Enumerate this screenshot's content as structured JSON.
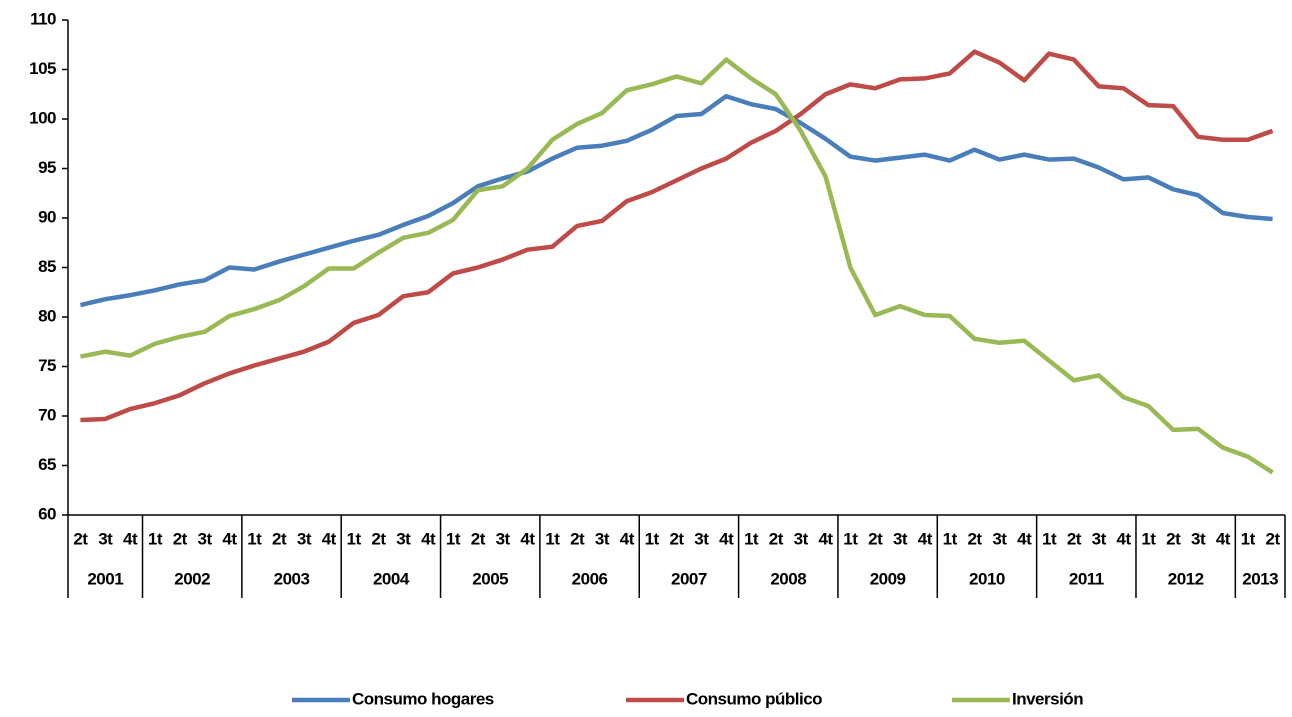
{
  "chart_data": {
    "type": "line",
    "categories": [
      "2t",
      "3t",
      "4t",
      "1t",
      "2t",
      "3t",
      "4t",
      "1t",
      "2t",
      "3t",
      "4t",
      "1t",
      "2t",
      "3t",
      "4t",
      "1t",
      "2t",
      "3t",
      "4t",
      "1t",
      "2t",
      "3t",
      "4t",
      "1t",
      "2t",
      "3t",
      "4t",
      "1t",
      "2t",
      "3t",
      "4t",
      "1t",
      "2t",
      "3t",
      "4t",
      "1t",
      "2t",
      "3t",
      "4t",
      "1t",
      "2t",
      "3t",
      "4t",
      "1t",
      "2t",
      "3t",
      "4t",
      "1t",
      "2t"
    ],
    "category_groups": [
      {
        "label": "2001",
        "size": 3
      },
      {
        "label": "2002",
        "size": 4
      },
      {
        "label": "2003",
        "size": 4
      },
      {
        "label": "2004",
        "size": 4
      },
      {
        "label": "2005",
        "size": 4
      },
      {
        "label": "2006",
        "size": 4
      },
      {
        "label": "2007",
        "size": 4
      },
      {
        "label": "2008",
        "size": 4
      },
      {
        "label": "2009",
        "size": 4
      },
      {
        "label": "2010",
        "size": 4
      },
      {
        "label": "2011",
        "size": 4
      },
      {
        "label": "2012",
        "size": 4
      },
      {
        "label": "2013",
        "size": 2
      }
    ],
    "series": [
      {
        "name": "Consumo hogares",
        "color": "#4a7ebb",
        "values": [
          81.2,
          81.8,
          82.2,
          82.7,
          83.3,
          83.7,
          85.0,
          84.8,
          85.6,
          86.3,
          87.0,
          87.7,
          88.3,
          89.3,
          90.2,
          91.5,
          93.2,
          94.0,
          94.7,
          96.0,
          97.1,
          97.3,
          97.8,
          98.9,
          100.3,
          100.5,
          102.3,
          101.5,
          101.0,
          99.6,
          98.0,
          96.2,
          95.8,
          96.1,
          96.4,
          95.8,
          96.9,
          95.9,
          96.4,
          95.9,
          96.0,
          95.1,
          93.9,
          94.1,
          92.9,
          92.3,
          90.5,
          90.1,
          89.9
        ]
      },
      {
        "name": "Consumo público",
        "color": "#be4b48",
        "values": [
          69.6,
          69.7,
          70.7,
          71.3,
          72.1,
          73.3,
          74.3,
          75.1,
          75.8,
          76.5,
          77.5,
          79.4,
          80.2,
          82.1,
          82.5,
          84.4,
          85.0,
          85.8,
          86.8,
          87.1,
          89.2,
          89.7,
          91.7,
          92.6,
          93.8,
          95.0,
          96.0,
          97.6,
          98.8,
          100.5,
          102.5,
          103.5,
          103.1,
          104.0,
          104.1,
          104.6,
          106.8,
          105.7,
          103.9,
          106.6,
          106.0,
          103.3,
          103.1,
          101.4,
          101.3,
          98.2,
          97.9,
          97.9,
          98.8
        ]
      },
      {
        "name": "Inversión",
        "color": "#98b954",
        "values": [
          76.0,
          76.5,
          76.1,
          77.3,
          78.0,
          78.5,
          80.1,
          80.8,
          81.7,
          83.1,
          84.9,
          84.9,
          86.5,
          88.0,
          88.5,
          89.8,
          92.8,
          93.2,
          95.0,
          97.9,
          99.5,
          100.6,
          102.9,
          103.5,
          104.3,
          103.6,
          106.0,
          104.1,
          102.5,
          98.8,
          94.2,
          85.0,
          80.2,
          81.1,
          80.2,
          80.1,
          77.8,
          77.4,
          77.6,
          75.6,
          73.6,
          74.1,
          71.9,
          71.0,
          68.6,
          68.7,
          66.8,
          65.9,
          64.3
        ]
      }
    ],
    "ylim": [
      60,
      110
    ],
    "yticks": [
      60,
      65,
      70,
      75,
      80,
      85,
      90,
      95,
      100,
      105,
      110
    ],
    "legend": "bottom"
  }
}
